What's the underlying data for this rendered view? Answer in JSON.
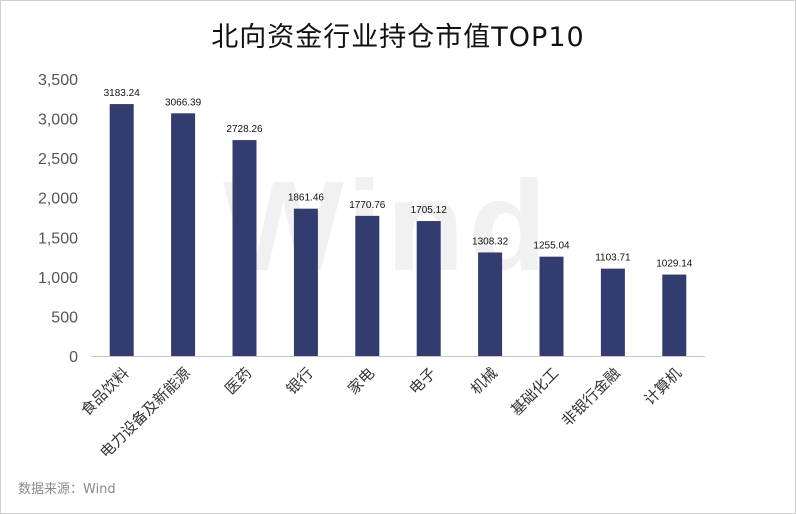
{
  "title": "北向资金行业持仓市值TOP10",
  "watermark": "Wind",
  "source": "数据来源：Wind",
  "colors": {
    "bar": "#323c6e",
    "axis": "#c8c8c8",
    "tick_text": "#555555"
  },
  "chart_data": {
    "type": "bar",
    "title": "北向资金行业持仓市值TOP10",
    "categories": [
      "食品饮料",
      "电力设备及新能源",
      "医药",
      "银行",
      "家电",
      "电子",
      "机械",
      "基础化工",
      "非银行金融",
      "计算机"
    ],
    "values": [
      3183.24,
      3066.39,
      2728.26,
      1861.46,
      1770.76,
      1705.12,
      1308.32,
      1255.04,
      1103.71,
      1029.14
    ],
    "data_labels": [
      "3183.24",
      "3066.39",
      "2728.26",
      "1861.46",
      "1770.76",
      "1705.12",
      "1308.32",
      "1255.04",
      "1103.71",
      "1029.14"
    ],
    "ylim": [
      0,
      3500
    ],
    "yticks": [
      0,
      500,
      1000,
      1500,
      2000,
      2500,
      3000,
      3500
    ],
    "ytick_labels": [
      "0",
      "500",
      "1,000",
      "1,500",
      "2,000",
      "2,500",
      "3,000",
      "3,500"
    ],
    "xlabel": "",
    "ylabel": "",
    "grid": false,
    "legend": "none"
  }
}
